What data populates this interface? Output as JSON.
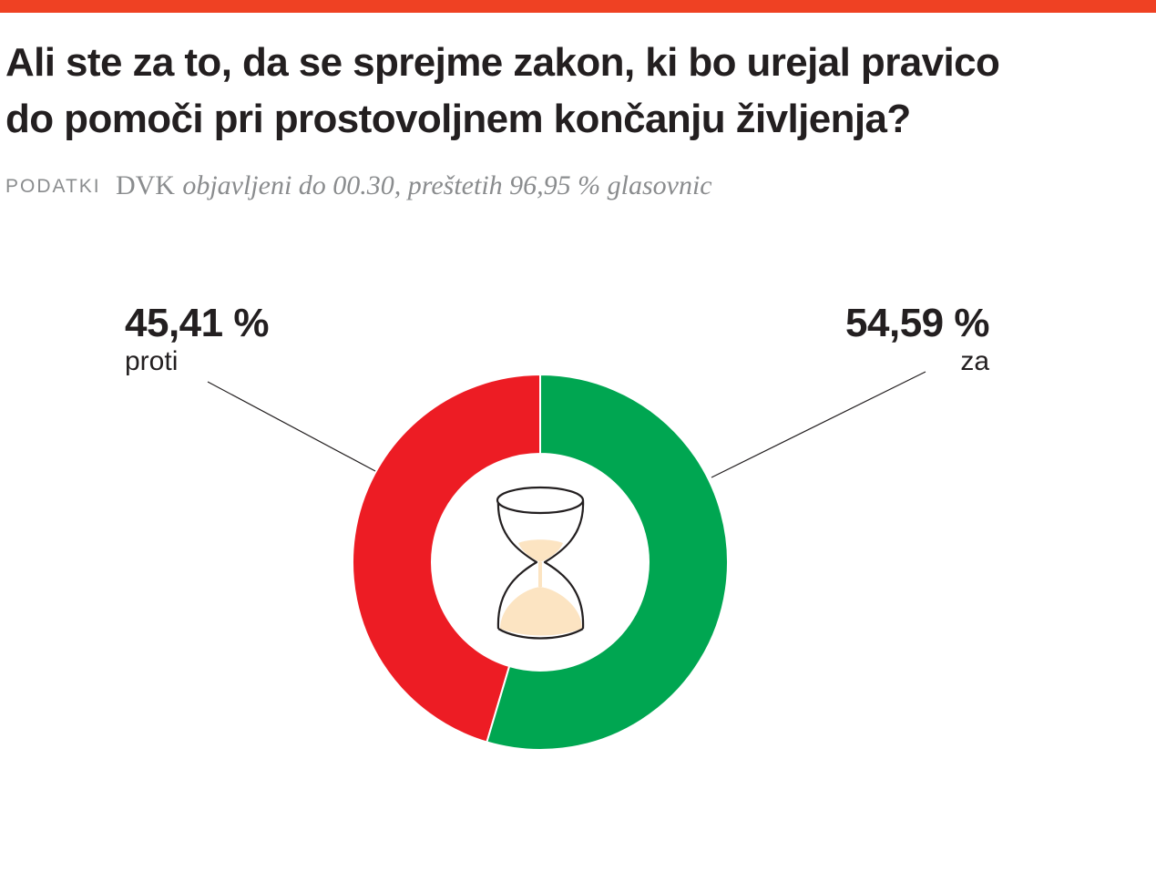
{
  "title": {
    "line1": "Ali ste za to, da se sprejme zakon, ki bo urejal pravico",
    "line2": "do pomoči pri prostovoljnem končanju življenja?"
  },
  "source": {
    "label": "PODATKI",
    "org": "DVK",
    "note": "objavljeni do 00.30, preštetih 96,95 % glasovnic"
  },
  "colors": {
    "top_bar": "#ef4123",
    "proti": "#ed1c24",
    "za": "#00a651",
    "sand": "#fce4c2"
  },
  "center_icon": "hourglass-icon",
  "chart_data": {
    "type": "pie",
    "style": "donut",
    "categories": [
      "proti",
      "za"
    ],
    "values": [
      45.41,
      54.59
    ],
    "value_labels": [
      "45,41 %",
      "54,59 %"
    ],
    "colors": [
      "#ed1c24",
      "#00a651"
    ]
  }
}
